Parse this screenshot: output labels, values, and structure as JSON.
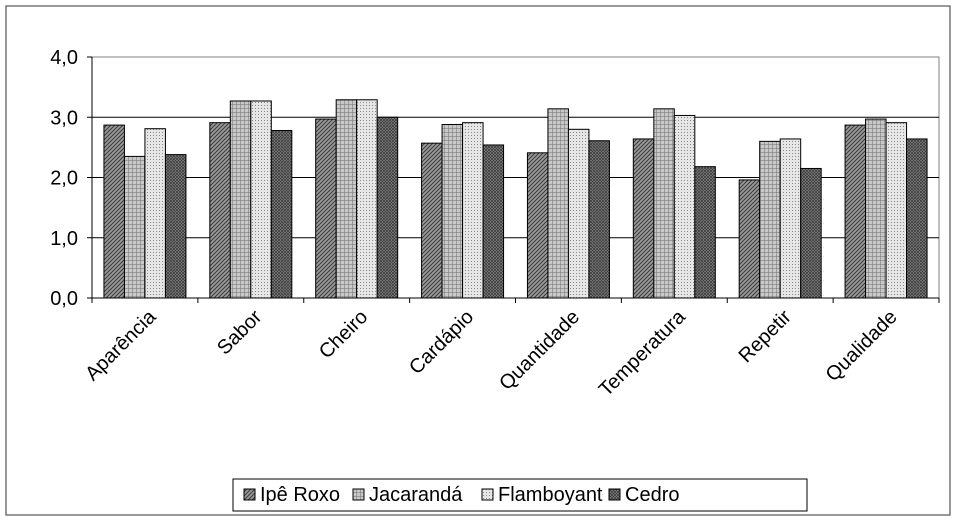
{
  "chart_data": {
    "type": "bar",
    "categories": [
      "Aparência",
      "Sabor",
      "Cheiro",
      "Cardápio",
      "Quantidade",
      "Temperatura",
      "Repetir",
      "Qualidade"
    ],
    "series": [
      {
        "name": "Ipê Roxo",
        "values": [
          2.87,
          2.91,
          2.97,
          2.57,
          2.41,
          2.64,
          1.96,
          2.87
        ],
        "pattern": "dark-hatch"
      },
      {
        "name": "Jacarandá",
        "values": [
          2.35,
          3.27,
          3.29,
          2.88,
          3.14,
          3.14,
          2.6,
          2.97
        ],
        "pattern": "grid-hatch"
      },
      {
        "name": "Flamboyant",
        "values": [
          2.81,
          3.27,
          3.29,
          2.91,
          2.8,
          3.03,
          2.64,
          2.91
        ],
        "pattern": "light-dots"
      },
      {
        "name": "Cedro",
        "values": [
          2.38,
          2.78,
          3.0,
          2.54,
          2.61,
          2.18,
          2.15,
          2.64
        ],
        "pattern": "dense-cross"
      }
    ],
    "y_ticks": [
      "0,0",
      "1,0",
      "2,0",
      "3,0",
      "4,0"
    ],
    "ylim": [
      0,
      4
    ],
    "grid": true,
    "legend_position": "bottom",
    "title": "",
    "xlabel": "",
    "ylabel": ""
  }
}
